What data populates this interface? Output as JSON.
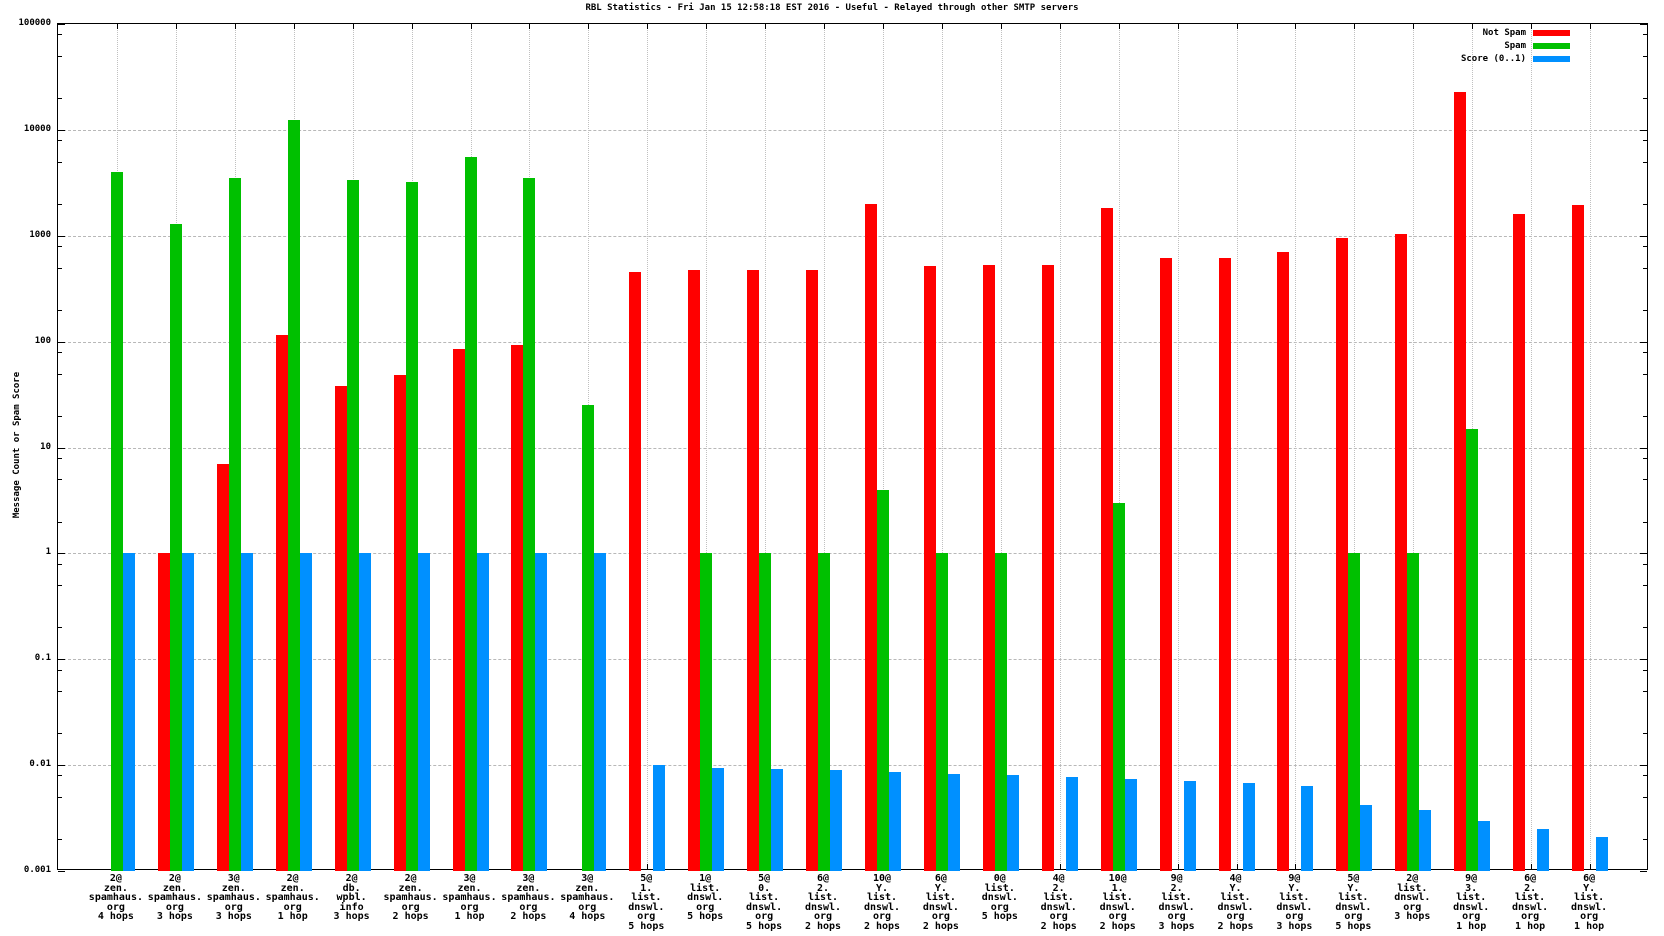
{
  "title": "RBL Statistics - Fri Jan 15 12:58:18 EST 2016 - Useful - Relayed through other SMTP servers",
  "y_axis": {
    "label": "Message Count or Spam Score",
    "ticks": [
      {
        "text": "100000",
        "value": 100000
      },
      {
        "text": "10000",
        "value": 10000
      },
      {
        "text": "1000",
        "value": 1000
      },
      {
        "text": "100",
        "value": 100
      },
      {
        "text": "10",
        "value": 10
      },
      {
        "text": "1",
        "value": 1
      },
      {
        "text": "0.1",
        "value": 0.1
      },
      {
        "text": "0.01",
        "value": 0.01
      },
      {
        "text": "0.001",
        "value": 0.001
      }
    ]
  },
  "legend": [
    {
      "label": "Not Spam",
      "color": "#ff0000"
    },
    {
      "label": "Spam",
      "color": "#00c000"
    },
    {
      "label": "Score (0..1)",
      "color": "#0090ff"
    }
  ],
  "chart_data": {
    "type": "bar",
    "title": "RBL Statistics - Fri Jan 15 12:58:18 EST 2016 - Useful - Relayed through other SMTP servers",
    "ylabel": "Message Count or Spam Score",
    "yscale": "log",
    "ylim": [
      0.001,
      100000
    ],
    "grid": true,
    "legend_position": "top-right-inside",
    "categories": [
      [
        "2@",
        "zen.",
        "spamhaus.",
        "org",
        "4 hops"
      ],
      [
        "2@",
        "zen.",
        "spamhaus.",
        "org",
        "3 hops"
      ],
      [
        "3@",
        "zen.",
        "spamhaus.",
        "org",
        "3 hops"
      ],
      [
        "2@",
        "zen.",
        "spamhaus.",
        "org",
        "1 hop"
      ],
      [
        "2@",
        "db.",
        "wpbl.",
        "info",
        "3 hops"
      ],
      [
        "2@",
        "zen.",
        "spamhaus.",
        "org",
        "2 hops"
      ],
      [
        "3@",
        "zen.",
        "spamhaus.",
        "org",
        "1 hop"
      ],
      [
        "3@",
        "zen.",
        "spamhaus.",
        "org",
        "2 hops"
      ],
      [
        "3@",
        "zen.",
        "spamhaus.",
        "org",
        "4 hops"
      ],
      [
        "5@",
        "1.",
        "list.",
        "dnswl.",
        "org",
        "5 hops"
      ],
      [
        "1@",
        "list.",
        "dnswl.",
        "org",
        "5 hops"
      ],
      [
        "5@",
        "0.",
        "list.",
        "dnswl.",
        "org",
        "5 hops"
      ],
      [
        "6@",
        "2.",
        "list.",
        "dnswl.",
        "org",
        "2 hops"
      ],
      [
        "10@",
        "Y.",
        "list.",
        "dnswl.",
        "org",
        "2 hops"
      ],
      [
        "6@",
        "Y.",
        "list.",
        "dnswl.",
        "org",
        "2 hops"
      ],
      [
        "0@",
        "list.",
        "dnswl.",
        "org",
        "5 hops"
      ],
      [
        "4@",
        "2.",
        "list.",
        "dnswl.",
        "org",
        "2 hops"
      ],
      [
        "10@",
        "1.",
        "list.",
        "dnswl.",
        "org",
        "2 hops"
      ],
      [
        "9@",
        "2.",
        "list.",
        "dnswl.",
        "org",
        "3 hops"
      ],
      [
        "4@",
        "Y.",
        "list.",
        "dnswl.",
        "org",
        "2 hops"
      ],
      [
        "9@",
        "Y.",
        "list.",
        "dnswl.",
        "org",
        "3 hops"
      ],
      [
        "5@",
        "Y.",
        "list.",
        "dnswl.",
        "org",
        "5 hops"
      ],
      [
        "2@",
        "list.",
        "dnswl.",
        "org",
        "3 hops"
      ],
      [
        "9@",
        "3.",
        "list.",
        "dnswl.",
        "org",
        "1 hop"
      ],
      [
        "6@",
        "2.",
        "list.",
        "dnswl.",
        "org",
        "1 hop"
      ],
      [
        "6@",
        "Y.",
        "list.",
        "dnswl.",
        "org",
        "1 hop"
      ]
    ],
    "series": [
      {
        "name": "Not Spam",
        "color": "#ff0000",
        "values": [
          null,
          1,
          7,
          115,
          38,
          48,
          85,
          93,
          null,
          460,
          475,
          480,
          480,
          2000,
          520,
          525,
          530,
          1830,
          620,
          620,
          700,
          950,
          1050,
          23000,
          1600,
          1950
        ]
      },
      {
        "name": "Spam",
        "color": "#00c000",
        "values": [
          4000,
          1300,
          3500,
          12500,
          3400,
          3250,
          5500,
          3500,
          25,
          null,
          1,
          1,
          1,
          4,
          1,
          1,
          null,
          3,
          null,
          null,
          null,
          1,
          1,
          15,
          null,
          null
        ]
      },
      {
        "name": "Score (0..1)",
        "color": "#0090ff",
        "values": [
          1,
          1,
          1,
          1,
          1,
          1,
          1,
          1,
          1,
          0.01,
          0.0095,
          0.0092,
          0.009,
          0.0086,
          0.0083,
          0.008,
          0.0078,
          0.0074,
          0.0071,
          0.0068,
          0.0063,
          0.0042,
          0.0038,
          0.003,
          0.0025,
          0.0021
        ]
      }
    ]
  }
}
